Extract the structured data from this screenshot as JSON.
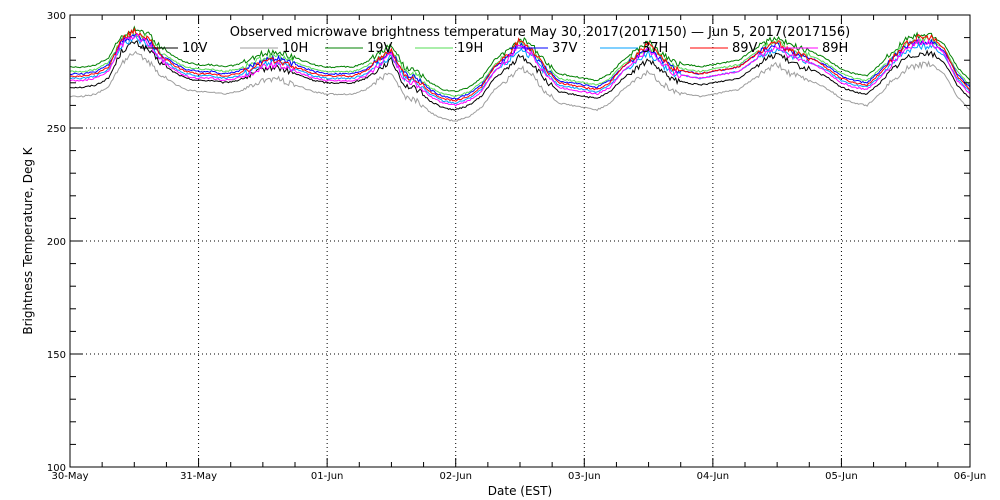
{
  "chart_data": {
    "type": "line",
    "title": "Observed microwave brightness temperature May 30, 2017(2017150) — Jun  5, 2017(2017156)",
    "xlabel": "Date (EST)",
    "ylabel": "Brightness Temperature, Deg K",
    "ylim": [
      100,
      300
    ],
    "yticks": [
      100,
      150,
      200,
      250,
      300
    ],
    "xlim": [
      "2017-05-30",
      "2017-06-06"
    ],
    "xticks": [
      "30-May",
      "31-May",
      "01-Jun",
      "02-Jun",
      "03-Jun",
      "04-Jun",
      "05-Jun",
      "06-Jun"
    ],
    "grid": true,
    "legend_position": "top inside plot",
    "days": [
      0,
      0.1,
      0.2,
      0.3,
      0.4,
      0.5,
      0.6,
      0.7,
      0.8,
      0.9,
      1.0,
      1.1,
      1.2,
      1.3,
      1.4,
      1.5,
      1.6,
      1.7,
      1.8,
      1.9,
      2.0,
      2.1,
      2.2,
      2.3,
      2.4,
      2.5,
      2.6,
      2.7,
      2.8,
      2.9,
      3.0,
      3.1,
      3.2,
      3.3,
      3.4,
      3.5,
      3.6,
      3.7,
      3.8,
      3.9,
      4.0,
      4.1,
      4.2,
      4.3,
      4.4,
      4.5,
      4.6,
      4.7,
      4.8,
      4.9,
      5.0,
      5.1,
      5.2,
      5.3,
      5.4,
      5.5,
      5.6,
      5.7,
      5.8,
      5.9,
      6.0,
      6.1,
      6.2,
      6.3,
      6.4,
      6.5,
      6.6,
      6.7,
      6.8,
      6.9,
      7.0
    ],
    "series": [
      {
        "name": "10V",
        "color": "#000000",
        "values": [
          268,
          268,
          269,
          272,
          284,
          288,
          285,
          279,
          275,
          272,
          271,
          271,
          270,
          271,
          273,
          276,
          277,
          275,
          273,
          271,
          270,
          270,
          270,
          272,
          276,
          280,
          269,
          267,
          262,
          259,
          258,
          260,
          264,
          272,
          276,
          282,
          278,
          271,
          266,
          265,
          264,
          263,
          266,
          272,
          276,
          280,
          275,
          271,
          270,
          269,
          270,
          271,
          272,
          276,
          280,
          283,
          279,
          277,
          275,
          272,
          268,
          266,
          265,
          270,
          276,
          281,
          283,
          283,
          279,
          269,
          263
        ]
      },
      {
        "name": "10H",
        "color": "#9e9e9e",
        "values": [
          264,
          264,
          265,
          268,
          279,
          283,
          280,
          274,
          270,
          267,
          266,
          266,
          265,
          266,
          268,
          271,
          272,
          270,
          268,
          266,
          265,
          265,
          265,
          267,
          271,
          275,
          264,
          262,
          257,
          254,
          253,
          255,
          259,
          267,
          271,
          277,
          273,
          266,
          261,
          260,
          259,
          258,
          261,
          267,
          271,
          275,
          270,
          266,
          265,
          264,
          265,
          266,
          267,
          271,
          275,
          278,
          274,
          272,
          270,
          267,
          263,
          261,
          260,
          265,
          271,
          276,
          278,
          278,
          274,
          264,
          258
        ]
      },
      {
        "name": "19V",
        "color": "#008000",
        "values": [
          277,
          277,
          278,
          281,
          291,
          294,
          292,
          286,
          282,
          279,
          278,
          278,
          277,
          278,
          280,
          283,
          284,
          282,
          280,
          278,
          277,
          277,
          277,
          279,
          283,
          287,
          277,
          275,
          270,
          267,
          266,
          268,
          272,
          280,
          284,
          290,
          286,
          279,
          274,
          273,
          272,
          271,
          274,
          280,
          284,
          288,
          283,
          279,
          278,
          277,
          278,
          279,
          280,
          284,
          288,
          290,
          287,
          285,
          283,
          280,
          276,
          274,
          273,
          278,
          284,
          289,
          291,
          291,
          287,
          277,
          271
        ]
      },
      {
        "name": "19H",
        "color": "#55dd55",
        "values": [
          275,
          275,
          276,
          279,
          289,
          292,
          290,
          284,
          280,
          277,
          276,
          276,
          275,
          276,
          278,
          281,
          282,
          280,
          278,
          276,
          275,
          275,
          275,
          277,
          281,
          285,
          275,
          273,
          268,
          265,
          264,
          266,
          270,
          278,
          282,
          288,
          284,
          277,
          272,
          271,
          270,
          269,
          272,
          278,
          282,
          286,
          281,
          277,
          276,
          275,
          276,
          277,
          278,
          282,
          286,
          288,
          285,
          283,
          281,
          278,
          274,
          272,
          271,
          276,
          282,
          287,
          289,
          289,
          285,
          275,
          269
        ]
      },
      {
        "name": "37V",
        "color": "#0000ff",
        "values": [
          274,
          274,
          275,
          278,
          288,
          291,
          289,
          283,
          279,
          276,
          275,
          275,
          274,
          275,
          277,
          280,
          281,
          279,
          277,
          275,
          274,
          274,
          274,
          276,
          280,
          284,
          274,
          272,
          267,
          264,
          263,
          265,
          269,
          277,
          281,
          287,
          283,
          276,
          271,
          270,
          269,
          268,
          271,
          277,
          281,
          285,
          280,
          276,
          275,
          274,
          275,
          276,
          277,
          281,
          285,
          287,
          284,
          282,
          280,
          277,
          273,
          271,
          270,
          275,
          281,
          286,
          288,
          288,
          284,
          274,
          268
        ]
      },
      {
        "name": "37H",
        "color": "#00a0ff",
        "values": [
          272,
          272,
          273,
          276,
          286,
          290,
          287,
          281,
          277,
          274,
          273,
          273,
          272,
          273,
          275,
          278,
          279,
          277,
          275,
          273,
          272,
          272,
          272,
          274,
          278,
          282,
          272,
          270,
          265,
          262,
          261,
          263,
          267,
          275,
          279,
          285,
          281,
          274,
          269,
          268,
          267,
          266,
          269,
          275,
          279,
          283,
          278,
          274,
          273,
          272,
          273,
          274,
          275,
          279,
          283,
          285,
          282,
          280,
          278,
          275,
          271,
          269,
          268,
          273,
          279,
          284,
          286,
          286,
          282,
          272,
          266
        ]
      },
      {
        "name": "89V",
        "color": "#ff0000",
        "values": [
          273,
          273,
          274,
          277,
          289,
          293,
          290,
          283,
          278,
          275,
          274,
          274,
          273,
          274,
          276,
          279,
          280,
          278,
          276,
          274,
          273,
          273,
          273,
          275,
          280,
          285,
          273,
          271,
          266,
          263,
          262,
          264,
          268,
          277,
          282,
          289,
          284,
          276,
          270,
          269,
          268,
          267,
          270,
          277,
          282,
          287,
          281,
          276,
          275,
          274,
          275,
          276,
          277,
          281,
          285,
          288,
          284,
          282,
          280,
          276,
          272,
          270,
          269,
          274,
          281,
          287,
          290,
          290,
          285,
          273,
          267
        ]
      },
      {
        "name": "89H",
        "color": "#ff00ff",
        "values": [
          271,
          271,
          272,
          275,
          287,
          291,
          288,
          281,
          276,
          273,
          272,
          272,
          271,
          272,
          274,
          277,
          278,
          276,
          274,
          272,
          271,
          271,
          271,
          273,
          278,
          283,
          271,
          269,
          264,
          261,
          260,
          262,
          266,
          275,
          280,
          287,
          282,
          274,
          268,
          267,
          266,
          265,
          268,
          275,
          280,
          285,
          279,
          274,
          273,
          272,
          273,
          274,
          275,
          279,
          283,
          286,
          282,
          280,
          278,
          274,
          270,
          268,
          267,
          272,
          279,
          285,
          288,
          288,
          283,
          271,
          265
        ]
      }
    ]
  }
}
